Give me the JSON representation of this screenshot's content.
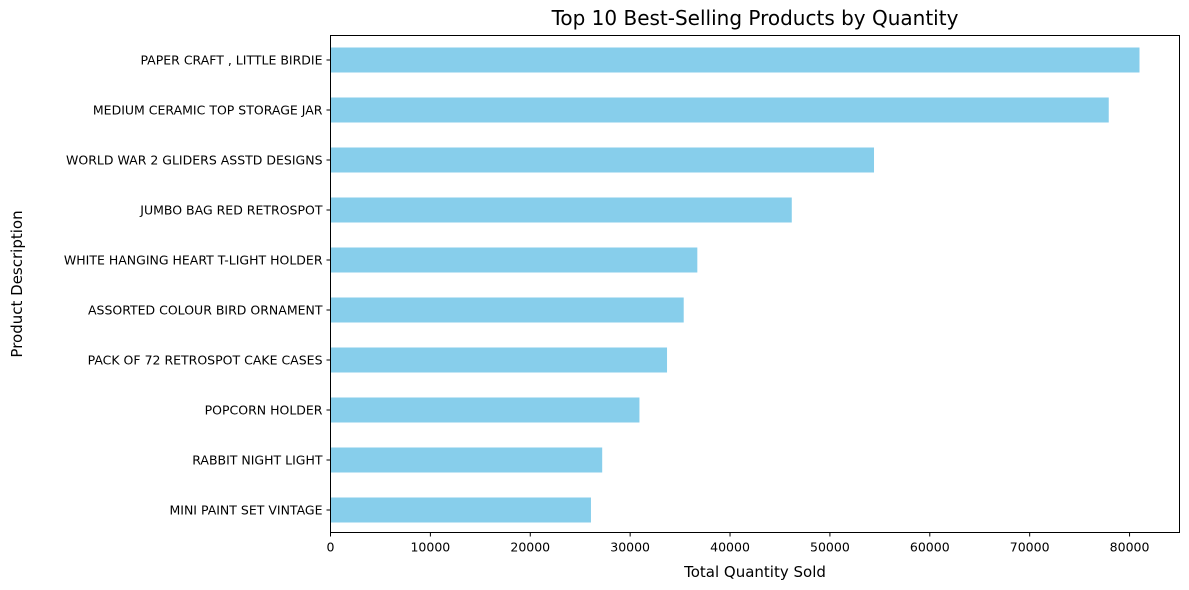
{
  "chart_data": {
    "type": "bar",
    "orientation": "horizontal",
    "title": "Top 10 Best-Selling Products by Quantity",
    "xlabel": "Total Quantity Sold",
    "ylabel": "Product Description",
    "bar_color": "#87ceeb",
    "grid": false,
    "xlim": [
      0,
      85000
    ],
    "xticks": [
      0,
      10000,
      20000,
      30000,
      40000,
      50000,
      60000,
      70000,
      80000
    ],
    "xtick_labels": [
      "0",
      "10000",
      "20000",
      "30000",
      "40000",
      "50000",
      "60000",
      "70000",
      "80000"
    ],
    "categories": [
      "PAPER CRAFT , LITTLE BIRDIE",
      "MEDIUM CERAMIC TOP STORAGE JAR",
      "WORLD WAR 2 GLIDERS ASSTD DESIGNS",
      "JUMBO BAG RED RETROSPOT",
      "WHITE HANGING HEART T-LIGHT HOLDER",
      "ASSORTED COLOUR BIRD ORNAMENT",
      "PACK OF 72 RETROSPOT CAKE CASES",
      "POPCORN HOLDER",
      "RABBIT NIGHT LIGHT",
      "MINI PAINT SET VINTAGE "
    ],
    "values": [
      80995,
      77916,
      54415,
      46181,
      36725,
      35362,
      33693,
      30931,
      27202,
      26076
    ]
  }
}
